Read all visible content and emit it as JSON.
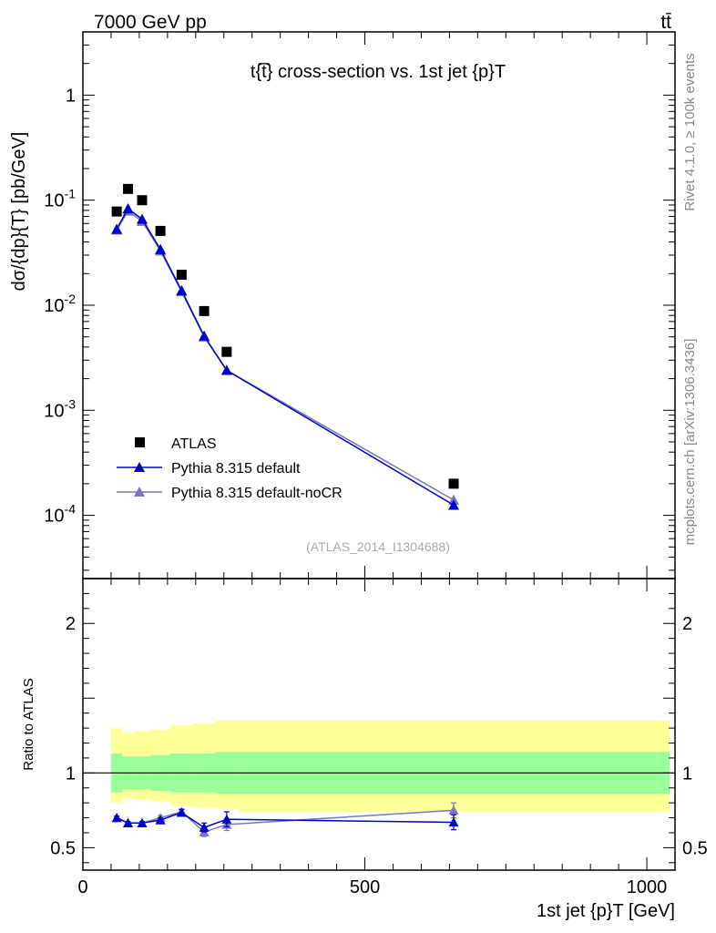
{
  "header": {
    "left": "7000 GeV pp",
    "right": "tt̄",
    "side_top": "Rivet 4.1.0, ≥ 100k events",
    "side_bottom": "mcplots.cern.ch [arXiv:1306.3436]"
  },
  "colors": {
    "data": "#000000",
    "default": "#0000cc",
    "nocr": "#7777bb",
    "band_inner": "#99ff99",
    "band_outer": "#ffff99"
  },
  "chart_data": [
    {
      "type": "scatter",
      "title": "t{t̅} cross-section vs. 1st jet {p}T",
      "xlabel": "1st jet {p}T [GeV]",
      "ylabel": "dσ/{dp}{T} [pb/GeV]",
      "yscale": "log",
      "xlim": [
        0,
        1050
      ],
      "ylim": [
        2.5e-05,
        4
      ],
      "yticks": [
        {
          "value": 1,
          "label": "1"
        },
        {
          "value": 0.1,
          "label": "10^-1"
        },
        {
          "value": 0.01,
          "label": "10^-2"
        },
        {
          "value": 0.001,
          "label": "10^-3"
        },
        {
          "value": 0.0001,
          "label": "10^-4"
        }
      ],
      "watermark": "(ATLAS_2014_I1304688)",
      "x": [
        60,
        80,
        105,
        137.5,
        175,
        215,
        255,
        657.5
      ],
      "series": [
        {
          "name": "ATLAS",
          "marker": "square",
          "values": [
            0.078,
            0.128,
            0.1,
            0.051,
            0.0195,
            0.0088,
            0.0036,
            0.0002
          ]
        },
        {
          "name": "Pythia 8.315 default",
          "marker": "triangle",
          "values": [
            0.053,
            0.083,
            0.066,
            0.034,
            0.0138,
            0.0051,
            0.0024,
            0.000125
          ]
        },
        {
          "name": "Pythia 8.315 default-noCR",
          "marker": "triangle",
          "values": [
            0.052,
            0.079,
            0.063,
            0.033,
            0.0135,
            0.005,
            0.0024,
            0.00014
          ]
        }
      ]
    },
    {
      "type": "line",
      "ylabel": "Ratio to ATLAS",
      "xlabel": "1st jet {p}T [GeV]",
      "xlim": [
        0,
        1050
      ],
      "ylim": [
        0.35,
        2.3
      ],
      "yticks": [
        {
          "value": 0.5,
          "label": "0.5"
        },
        {
          "value": 1,
          "label": "1"
        },
        {
          "value": 2,
          "label": "2"
        }
      ],
      "xticks": [
        {
          "value": 0,
          "label": "0"
        },
        {
          "value": 500,
          "label": "500"
        },
        {
          "value": 1000,
          "label": "1000"
        }
      ],
      "x": [
        60,
        80,
        105,
        137.5,
        175,
        215,
        255,
        657.5
      ],
      "bins": [
        [
          50,
          70
        ],
        [
          70,
          90
        ],
        [
          90,
          120
        ],
        [
          120,
          155
        ],
        [
          155,
          195
        ],
        [
          195,
          235
        ],
        [
          235,
          275
        ],
        [
          275,
          1040
        ]
      ],
      "band_inner": [
        [
          0.87,
          1.13
        ],
        [
          0.89,
          1.11
        ],
        [
          0.89,
          1.11
        ],
        [
          0.88,
          1.12
        ],
        [
          0.87,
          1.13
        ],
        [
          0.87,
          1.13
        ],
        [
          0.86,
          1.14
        ],
        [
          0.86,
          1.14
        ]
      ],
      "band_outer": [
        [
          0.8,
          1.3
        ],
        [
          0.83,
          1.27
        ],
        [
          0.82,
          1.28
        ],
        [
          0.81,
          1.29
        ],
        [
          0.78,
          1.32
        ],
        [
          0.77,
          1.33
        ],
        [
          0.76,
          1.35
        ],
        [
          0.74,
          1.35
        ]
      ],
      "series": [
        {
          "name": "Pythia 8.315 default",
          "values": [
            0.7,
            0.665,
            0.665,
            0.685,
            0.735,
            0.635,
            0.69,
            0.67
          ],
          "errors": [
            0.01,
            0.01,
            0.01,
            0.015,
            0.02,
            0.03,
            0.05,
            0.05
          ]
        },
        {
          "name": "Pythia 8.315 default-noCR",
          "values": [
            0.7,
            0.665,
            0.665,
            0.7,
            0.74,
            0.605,
            0.655,
            0.75
          ],
          "errors": [
            0.01,
            0.01,
            0.01,
            0.015,
            0.02,
            0.03,
            0.04,
            0.05
          ]
        }
      ]
    }
  ]
}
